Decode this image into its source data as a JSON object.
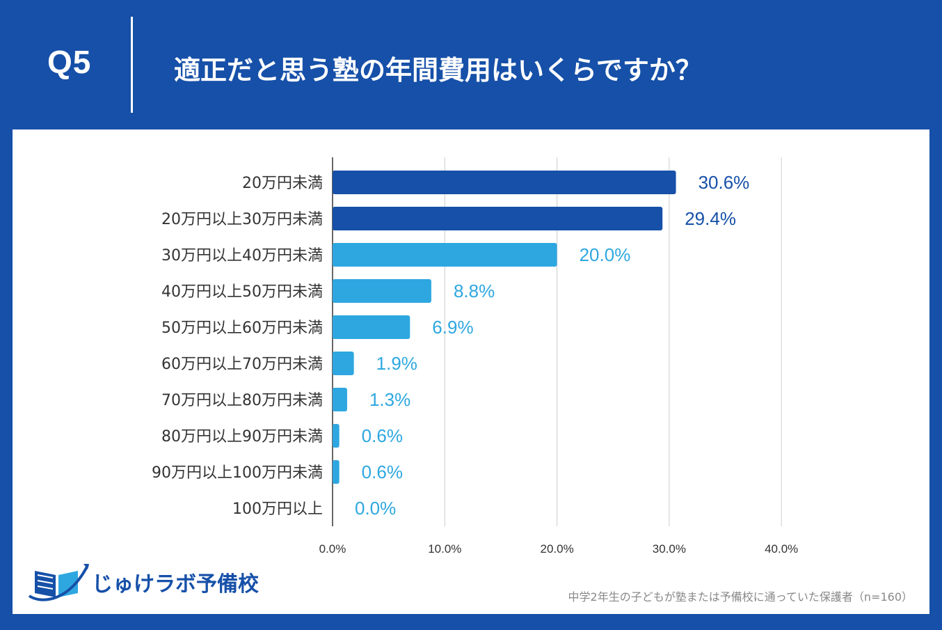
{
  "header": {
    "question_number": "Q5",
    "question_text": "適正だと思う塾の年間費用はいくらですか？"
  },
  "colors": {
    "background": "#1650a8",
    "bar_dark": "#1650a8",
    "bar_light": "#2ea7e0",
    "gridline": "#cccccc",
    "axis": "#333333"
  },
  "chart_data": {
    "type": "bar",
    "orientation": "horizontal",
    "title": "適正だと思う塾の年間費用はいくらですか？",
    "xlabel": "",
    "ylabel": "",
    "categories": [
      "20万円未満",
      "20万円以上30万円未満",
      "30万円以上40万円未満",
      "40万円以上50万円未満",
      "50万円以上60万円未満",
      "60万円以上70万円未満",
      "70万円以上80万円未満",
      "80万円以上90万円未満",
      "90万円以上100万円未満",
      "100万円以上"
    ],
    "values": [
      30.6,
      29.4,
      20.0,
      8.8,
      6.9,
      1.9,
      1.3,
      0.6,
      0.6,
      0.0
    ],
    "value_labels": [
      "30.6%",
      "29.4%",
      "20.0%",
      "8.8%",
      "6.9%",
      "1.9%",
      "1.3%",
      "0.6%",
      "0.6%",
      "0.0%"
    ],
    "highlight_top_n": 2,
    "xlim": [
      0,
      40
    ],
    "x_ticks": [
      0,
      10,
      20,
      30,
      40
    ],
    "x_tick_labels": [
      "0.0%",
      "10.0%",
      "20.0%",
      "30.0%",
      "40.0%"
    ],
    "grid": true
  },
  "logo": {
    "text": "じゅけラボ予備校",
    "icon": "open-book-swoosh-icon"
  },
  "footnote": "中学2年生の子どもが塾または予備校に通っていた保護者（n=160）"
}
